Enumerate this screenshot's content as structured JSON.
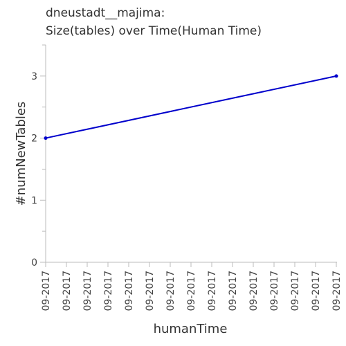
{
  "chart_data": {
    "type": "line",
    "title_lines": [
      "dneustadt__majima:",
      "Size(tables) over Time(Human Time)"
    ],
    "xlabel": "humanTime",
    "ylabel": "#numNewTables",
    "x_tick_labels": [
      "09-2017",
      "09-2017",
      "09-2017",
      "09-2017",
      "09-2017",
      "09-2017",
      "09-2017",
      "09-2017",
      "09-2017",
      "09-2017",
      "09-2017",
      "09-2017",
      "09-2017",
      "09-2017",
      "09-2017"
    ],
    "y_ticks": [
      0,
      1,
      2,
      3
    ],
    "ylim": [
      0,
      3.5
    ],
    "xlim": [
      0,
      1
    ],
    "series": [
      {
        "points": [
          {
            "x": 0,
            "y": 2
          },
          {
            "x": 1,
            "y": 3
          }
        ],
        "color": "#0000cc"
      }
    ],
    "grid": false,
    "legend": "none",
    "axis_color": "#bbbbbb"
  }
}
